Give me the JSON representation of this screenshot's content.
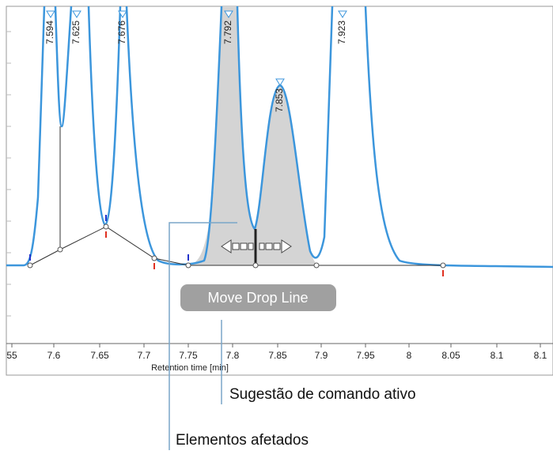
{
  "peak_labels": [
    "7.594",
    "7.625",
    "7.676",
    "7.792",
    "7.853",
    "7.923"
  ],
  "x_axis": {
    "tick_labels": [
      "55",
      "7.6",
      "7.65",
      "7.7",
      "7.75",
      "7.8",
      "7.85",
      "7.9",
      "7.95",
      "8",
      "8.05",
      "8.1",
      "8.1"
    ],
    "label": "Retention time [min]"
  },
  "tooltip": "Move Drop Line",
  "callouts": {
    "active_command": "Sugestão de comando ativo",
    "affected_elements": "Elementos afetados"
  }
}
